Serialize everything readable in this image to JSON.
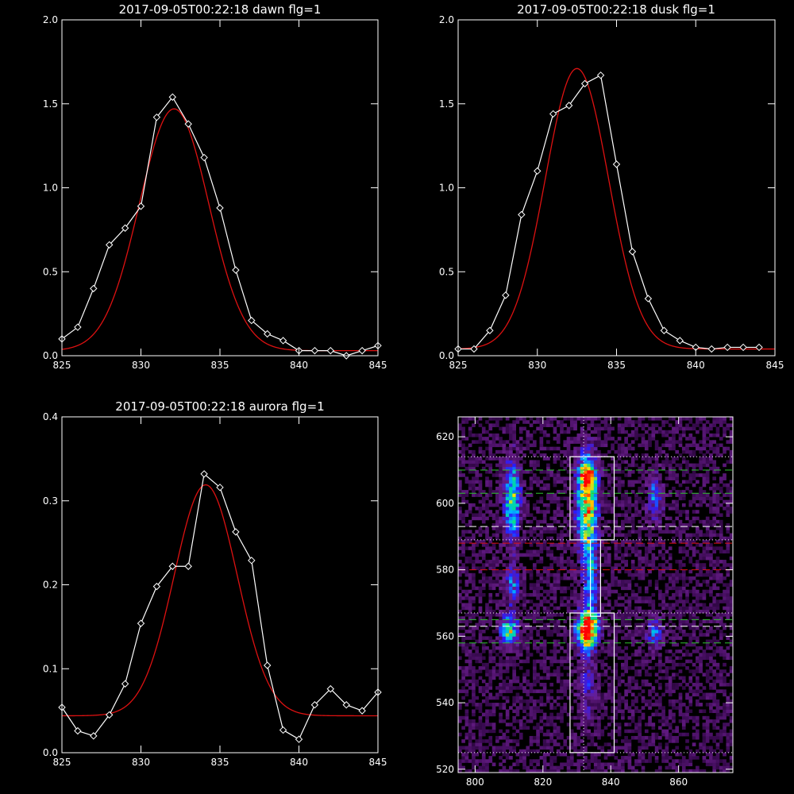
{
  "chart_data": [
    {
      "type": "line",
      "title": "2017-09-05T00:22:18 dawn flg=1",
      "xlim": [
        825,
        845
      ],
      "ylim": [
        0,
        2.0
      ],
      "xticks": [
        825,
        830,
        835,
        840,
        845
      ],
      "xtick_labels": [
        "825",
        "830",
        "835",
        "840",
        "845"
      ],
      "yticks": [
        0,
        0.5,
        1.0,
        1.5,
        2.0
      ],
      "ytick_labels": [
        "0.0",
        "0.5",
        "1.0",
        "1.5",
        "2.0"
      ],
      "colors": {
        "data": "#ffffff",
        "fit": "#dd1111"
      },
      "series": [
        {
          "role": "data",
          "marker": "diamond",
          "x": [
            825,
            826,
            827,
            828,
            829,
            830,
            831,
            832,
            833,
            834,
            835,
            836,
            837,
            838,
            839,
            840,
            841,
            842,
            843,
            844,
            845
          ],
          "y": [
            0.1,
            0.17,
            0.4,
            0.66,
            0.76,
            0.89,
            1.42,
            1.54,
            1.38,
            1.18,
            0.88,
            0.51,
            0.21,
            0.13,
            0.09,
            0.03,
            0.03,
            0.03,
            0.0,
            0.03,
            0.06
          ]
        },
        {
          "role": "fit",
          "type": "gaussian",
          "amp": 1.44,
          "center": 832.1,
          "sigma": 2.2,
          "offset": 0.03
        }
      ]
    },
    {
      "type": "line",
      "title": "2017-09-05T00:22:18 dusk flg=1",
      "xlim": [
        825,
        845
      ],
      "ylim": [
        0,
        2.0
      ],
      "xticks": [
        825,
        830,
        835,
        840,
        845
      ],
      "xtick_labels": [
        "825",
        "830",
        "835",
        "840",
        "845"
      ],
      "yticks": [
        0,
        0.5,
        1.0,
        1.5,
        2.0
      ],
      "ytick_labels": [
        "0.0",
        "0.5",
        "1.0",
        "1.5",
        "2.0"
      ],
      "colors": {
        "data": "#ffffff",
        "fit": "#dd1111"
      },
      "series": [
        {
          "role": "data",
          "marker": "diamond",
          "x": [
            825,
            826,
            827,
            828,
            829,
            830,
            831,
            832,
            833,
            834,
            835,
            836,
            837,
            838,
            839,
            840,
            841,
            842,
            843,
            844
          ],
          "y": [
            0.04,
            0.04,
            0.15,
            0.36,
            0.84,
            1.1,
            1.44,
            1.49,
            1.62,
            1.67,
            1.14,
            0.62,
            0.34,
            0.15,
            0.09,
            0.05,
            0.04,
            0.05,
            0.05,
            0.05
          ]
        },
        {
          "role": "fit",
          "type": "gaussian",
          "amp": 1.67,
          "center": 832.5,
          "sigma": 2.0,
          "offset": 0.04
        }
      ]
    },
    {
      "type": "line",
      "title": "2017-09-05T00:22:18 aurora flg=1",
      "xlim": [
        825,
        845
      ],
      "ylim": [
        0,
        0.4
      ],
      "xticks": [
        825,
        830,
        835,
        840,
        845
      ],
      "xtick_labels": [
        "825",
        "830",
        "835",
        "840",
        "845"
      ],
      "yticks": [
        0,
        0.1,
        0.2,
        0.3,
        0.4
      ],
      "ytick_labels": [
        "0.0",
        "0.1",
        "0.2",
        "0.3",
        "0.4"
      ],
      "colors": {
        "data": "#ffffff",
        "fit": "#dd1111"
      },
      "series": [
        {
          "role": "data",
          "marker": "diamond",
          "x": [
            825,
            826,
            827,
            828,
            829,
            830,
            831,
            832,
            833,
            834,
            835,
            836,
            837,
            838,
            839,
            840,
            841,
            842,
            843,
            844,
            845
          ],
          "y": [
            0.054,
            0.026,
            0.02,
            0.045,
            0.082,
            0.154,
            0.198,
            0.222,
            0.222,
            0.332,
            0.316,
            0.263,
            0.229,
            0.104,
            0.027,
            0.016,
            0.057,
            0.076,
            0.057,
            0.05,
            0.072
          ]
        },
        {
          "role": "fit",
          "type": "gaussian",
          "amp": 0.275,
          "center": 834.1,
          "sigma": 2.0,
          "offset": 0.044
        }
      ]
    },
    {
      "type": "heatmap",
      "title": "",
      "xlim": [
        795,
        876
      ],
      "ylim": [
        519,
        626
      ],
      "xticks": [
        800,
        820,
        840,
        860
      ],
      "xtick_labels": [
        "800",
        "820",
        "840",
        "860"
      ],
      "yticks": [
        520,
        540,
        560,
        580,
        600,
        620
      ],
      "ytick_labels": [
        "520",
        "540",
        "560",
        "580",
        "600",
        "620"
      ],
      "colormap": [
        "#000000",
        "#3a0a52",
        "#6a1e8c",
        "#2a1cff",
        "#00b8ff",
        "#00e08a",
        "#ffe000",
        "#ff6000",
        "#ff0000"
      ],
      "blobs": [
        {
          "x": 811,
          "y": 601,
          "sx": 1.6,
          "sy": 8.0,
          "peak": 0.55
        },
        {
          "x": 811,
          "y": 575,
          "sx": 1.5,
          "sy": 4.0,
          "peak": 0.3
        },
        {
          "x": 810,
          "y": 562,
          "sx": 1.8,
          "sy": 3.0,
          "peak": 0.55
        },
        {
          "x": 833,
          "y": 600,
          "sx": 2.0,
          "sy": 10.0,
          "peak": 0.7
        },
        {
          "x": 833,
          "y": 608,
          "sx": 1.6,
          "sy": 2.5,
          "peak": 0.55
        },
        {
          "x": 834,
          "y": 576,
          "sx": 1.5,
          "sy": 10.0,
          "peak": 0.32
        },
        {
          "x": 833,
          "y": 562,
          "sx": 2.0,
          "sy": 3.5,
          "peak": 0.98
        },
        {
          "x": 833,
          "y": 545,
          "sx": 1.8,
          "sy": 8.0,
          "peak": 0.18
        },
        {
          "x": 853,
          "y": 602,
          "sx": 1.5,
          "sy": 5.0,
          "peak": 0.28
        },
        {
          "x": 853,
          "y": 561,
          "sx": 1.5,
          "sy": 3.0,
          "peak": 0.3
        }
      ],
      "boxes": [
        {
          "x0": 828,
          "x1": 841,
          "y0": 589,
          "y1": 614,
          "color": "#ffffff"
        },
        {
          "x0": 834,
          "x1": 837,
          "y0": 566,
          "y1": 589,
          "color": "#ffffff"
        },
        {
          "x0": 828,
          "x1": 841,
          "y0": 525,
          "y1": 567,
          "color": "#ffffff"
        }
      ],
      "hlines": [
        {
          "y": 614,
          "color": "#ffffff",
          "style": "dotted"
        },
        {
          "y": 610,
          "color": "#2fbf2f",
          "style": "dashed"
        },
        {
          "y": 603,
          "color": "#2fbf2f",
          "style": "dashed"
        },
        {
          "y": 593,
          "color": "#ffffff",
          "style": "dashed"
        },
        {
          "y": 589,
          "color": "#ffffff",
          "style": "dotted"
        },
        {
          "y": 588,
          "color": "#dd1111",
          "style": "dashed"
        },
        {
          "y": 580,
          "color": "#dd1111",
          "style": "dashed"
        },
        {
          "y": 567,
          "color": "#ffffff",
          "style": "dotted"
        },
        {
          "y": 565,
          "color": "#2fbf2f",
          "style": "dashed"
        },
        {
          "y": 563,
          "color": "#ffffff",
          "style": "dashed"
        },
        {
          "y": 558,
          "color": "#2fbf2f",
          "style": "dashed"
        },
        {
          "y": 525,
          "color": "#ffffff",
          "style": "dotted"
        }
      ],
      "vlines": [
        {
          "x": 832,
          "color": "#ffffff",
          "style": "dotted"
        }
      ]
    }
  ]
}
